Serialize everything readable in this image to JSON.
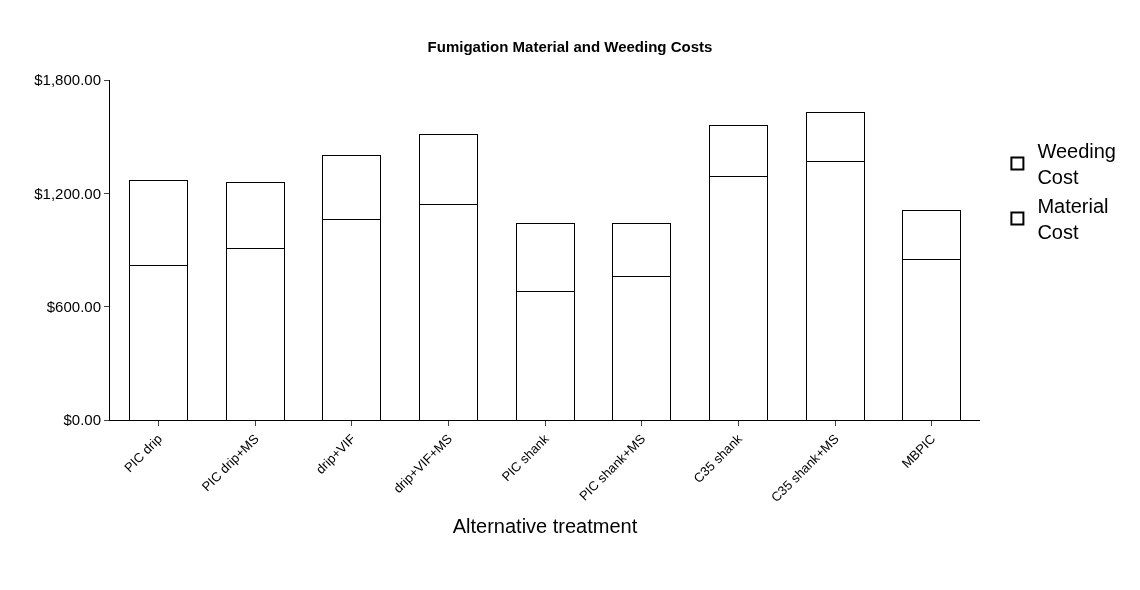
{
  "chart_data": {
    "type": "bar",
    "title": "Fumigation Material and Weeding Costs",
    "xlabel": "Alternative treatment",
    "stacked": true,
    "categories": [
      "PIC drip",
      "PIC drip+MS",
      "drip+VIF",
      "drip+VIF+MS",
      "PIC shank",
      "PIC shank+MS",
      "C35 shank",
      "C35 shank+MS",
      "MBPIC"
    ],
    "series": [
      {
        "name": "Material Cost",
        "color": "#ffffff",
        "values": [
          820,
          910,
          1060,
          1140,
          680,
          760,
          1290,
          1370,
          850
        ]
      },
      {
        "name": "Weeding Cost",
        "color": "#ffffff",
        "values": [
          450,
          350,
          340,
          370,
          360,
          280,
          270,
          260,
          260
        ]
      }
    ],
    "ylim": [
      0,
      1800
    ],
    "yticks": [
      {
        "value": 0,
        "label": "$0.00"
      },
      {
        "value": 600,
        "label": "$600.00"
      },
      {
        "value": 1200,
        "label": "$1,200.00"
      },
      {
        "value": 1800,
        "label": "$1,800.00"
      }
    ],
    "grid": false,
    "legend": "right"
  }
}
